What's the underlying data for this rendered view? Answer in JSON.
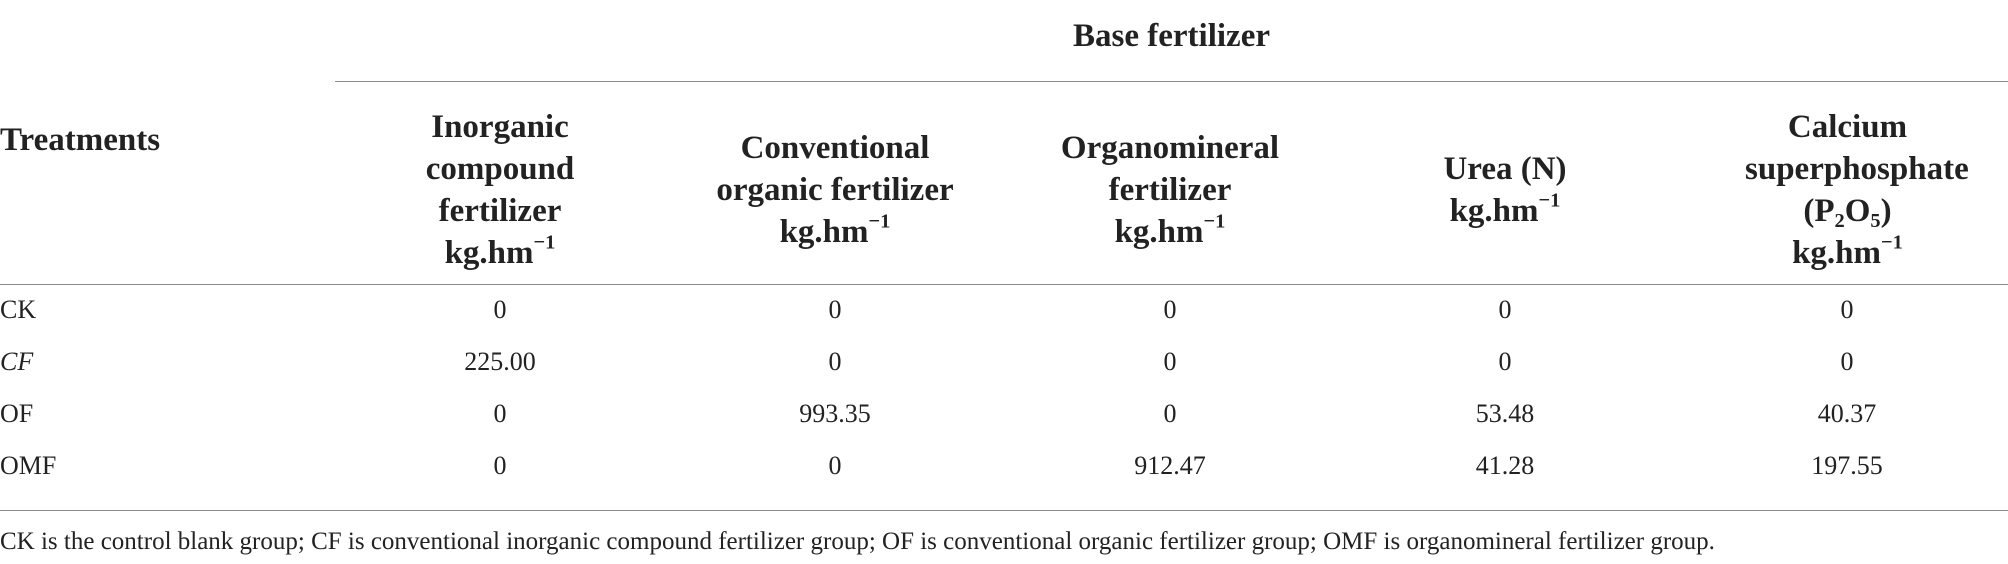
{
  "table": {
    "group_header": "Base fertilizer",
    "row_header": "Treatments",
    "unit_base": "kg.hm",
    "unit_exponent": "−1",
    "columns": [
      {
        "line1": "Inorganic",
        "line2": "compound fertilizer"
      },
      {
        "line1": "Conventional",
        "line2": "organic fertilizer"
      },
      {
        "line1": "Organomineral",
        "line2": "fertilizer"
      },
      {
        "line1": "Urea (N)"
      },
      {
        "line1": "Calcium",
        "line2": "superphosphate",
        "formula_p": "P",
        "formula_p_sub": "2",
        "formula_o": "O",
        "formula_o_sub": "5"
      }
    ],
    "rows": [
      {
        "label": "CK",
        "values": [
          "0",
          "0",
          "0",
          "0",
          "0"
        ]
      },
      {
        "label": "CF",
        "values": [
          "225.00",
          "0",
          "0",
          "0",
          "0"
        ]
      },
      {
        "label": "OF",
        "values": [
          "0",
          "993.35",
          "0",
          "53.48",
          "40.37"
        ]
      },
      {
        "label": "OMF",
        "values": [
          "0",
          "0",
          "912.47",
          "41.28",
          "197.55"
        ]
      }
    ],
    "footnote": "CK is the control blank group; CF is conventional inorganic compound fertilizer group; OF is conventional organic fertilizer group; OMF is organomineral fertilizer group."
  }
}
